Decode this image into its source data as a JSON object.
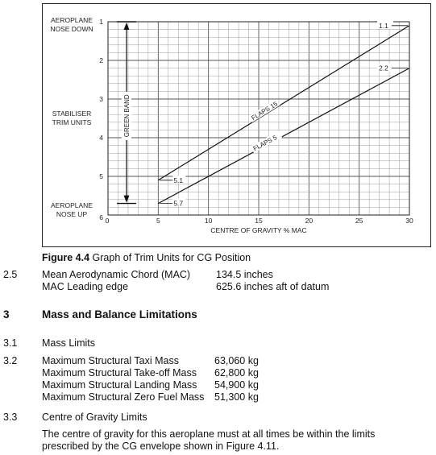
{
  "chart_data": {
    "type": "line",
    "y_axis_title": [
      "STABILISER",
      "TRIM UNITS"
    ],
    "y_top_label": [
      "AEROPLANE",
      "NOSE DOWN"
    ],
    "y_bottom_label": [
      "AEROPLANE",
      "NOSE UP"
    ],
    "xlabel": "CENTRE OF GRAVITY  % MAC",
    "xlim": [
      0,
      30
    ],
    "ylim": [
      1,
      6
    ],
    "x_ticks": [
      "0",
      "5",
      "10",
      "15",
      "20",
      "25",
      "30"
    ],
    "y_ticks": [
      "1",
      "2",
      "3",
      "4",
      "5",
      "6"
    ],
    "y_inverted": true,
    "grid": true,
    "series": [
      {
        "name": "FLAPS 15",
        "x": [
          5,
          30
        ],
        "y": [
          5.1,
          1.1
        ],
        "start_label": "5.1",
        "end_label": "1.1"
      },
      {
        "name": "FLAPS 5",
        "x": [
          5,
          30
        ],
        "y": [
          5.7,
          2.2
        ],
        "start_label": "5.7",
        "end_label": "2.2"
      }
    ],
    "band": {
      "label": "GREEN BAND",
      "from": 1,
      "to": 5.7
    }
  },
  "figure": {
    "number": "Figure 4.4",
    "caption": "Graph of Trim Units for CG Position"
  },
  "item_2_5": {
    "number": "2.5",
    "rows": [
      {
        "label": "Mean Aerodynamic Chord (MAC)",
        "value": "134.5 inches"
      },
      {
        "label": "MAC Leading edge",
        "value": "625.6 inches aft of datum"
      }
    ]
  },
  "section_3": {
    "number": "3",
    "title": "Mass and Balance Limitations"
  },
  "item_3_1": {
    "number": "3.1",
    "title": "Mass Limits"
  },
  "item_3_2": {
    "number": "3.2",
    "rows": [
      {
        "label": "Maximum Structural Taxi Mass",
        "value": "63,060 kg"
      },
      {
        "label": "Maximum Structural Take-off Mass",
        "value": "62,800 kg"
      },
      {
        "label": "Maximum Structural Landing Mass",
        "value": "54,900 kg"
      },
      {
        "label": "Maximum Structural Zero Fuel Mass",
        "value": "51,300 kg"
      }
    ]
  },
  "item_3_3": {
    "number": "3.3",
    "title": "Centre of Gravity Limits",
    "paragraph_lines": [
      "The centre of gravity for this aeroplane must at all times be within the limits",
      "prescribed by the CG envelope shown in Figure 4.11."
    ]
  }
}
